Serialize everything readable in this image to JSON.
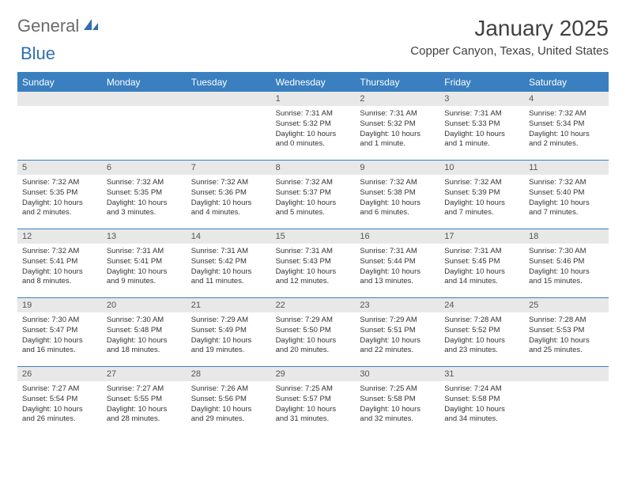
{
  "logo": {
    "text1": "General",
    "text2": "Blue"
  },
  "title": "January 2025",
  "location": "Copper Canyon, Texas, United States",
  "colors": {
    "header_bg": "#3a7fbf",
    "header_text": "#ffffff",
    "daynum_bg": "#e8e8e8",
    "border": "#3a7fbf",
    "body_text": "#333333",
    "page_bg": "#ffffff"
  },
  "day_headers": [
    "Sunday",
    "Monday",
    "Tuesday",
    "Wednesday",
    "Thursday",
    "Friday",
    "Saturday"
  ],
  "weeks": [
    [
      null,
      null,
      null,
      {
        "n": "1",
        "sunrise": "7:31 AM",
        "sunset": "5:32 PM",
        "daylight": "10 hours and 0 minutes."
      },
      {
        "n": "2",
        "sunrise": "7:31 AM",
        "sunset": "5:32 PM",
        "daylight": "10 hours and 1 minute."
      },
      {
        "n": "3",
        "sunrise": "7:31 AM",
        "sunset": "5:33 PM",
        "daylight": "10 hours and 1 minute."
      },
      {
        "n": "4",
        "sunrise": "7:32 AM",
        "sunset": "5:34 PM",
        "daylight": "10 hours and 2 minutes."
      }
    ],
    [
      {
        "n": "5",
        "sunrise": "7:32 AM",
        "sunset": "5:35 PM",
        "daylight": "10 hours and 2 minutes."
      },
      {
        "n": "6",
        "sunrise": "7:32 AM",
        "sunset": "5:35 PM",
        "daylight": "10 hours and 3 minutes."
      },
      {
        "n": "7",
        "sunrise": "7:32 AM",
        "sunset": "5:36 PM",
        "daylight": "10 hours and 4 minutes."
      },
      {
        "n": "8",
        "sunrise": "7:32 AM",
        "sunset": "5:37 PM",
        "daylight": "10 hours and 5 minutes."
      },
      {
        "n": "9",
        "sunrise": "7:32 AM",
        "sunset": "5:38 PM",
        "daylight": "10 hours and 6 minutes."
      },
      {
        "n": "10",
        "sunrise": "7:32 AM",
        "sunset": "5:39 PM",
        "daylight": "10 hours and 7 minutes."
      },
      {
        "n": "11",
        "sunrise": "7:32 AM",
        "sunset": "5:40 PM",
        "daylight": "10 hours and 7 minutes."
      }
    ],
    [
      {
        "n": "12",
        "sunrise": "7:32 AM",
        "sunset": "5:41 PM",
        "daylight": "10 hours and 8 minutes."
      },
      {
        "n": "13",
        "sunrise": "7:31 AM",
        "sunset": "5:41 PM",
        "daylight": "10 hours and 9 minutes."
      },
      {
        "n": "14",
        "sunrise": "7:31 AM",
        "sunset": "5:42 PM",
        "daylight": "10 hours and 11 minutes."
      },
      {
        "n": "15",
        "sunrise": "7:31 AM",
        "sunset": "5:43 PM",
        "daylight": "10 hours and 12 minutes."
      },
      {
        "n": "16",
        "sunrise": "7:31 AM",
        "sunset": "5:44 PM",
        "daylight": "10 hours and 13 minutes."
      },
      {
        "n": "17",
        "sunrise": "7:31 AM",
        "sunset": "5:45 PM",
        "daylight": "10 hours and 14 minutes."
      },
      {
        "n": "18",
        "sunrise": "7:30 AM",
        "sunset": "5:46 PM",
        "daylight": "10 hours and 15 minutes."
      }
    ],
    [
      {
        "n": "19",
        "sunrise": "7:30 AM",
        "sunset": "5:47 PM",
        "daylight": "10 hours and 16 minutes."
      },
      {
        "n": "20",
        "sunrise": "7:30 AM",
        "sunset": "5:48 PM",
        "daylight": "10 hours and 18 minutes."
      },
      {
        "n": "21",
        "sunrise": "7:29 AM",
        "sunset": "5:49 PM",
        "daylight": "10 hours and 19 minutes."
      },
      {
        "n": "22",
        "sunrise": "7:29 AM",
        "sunset": "5:50 PM",
        "daylight": "10 hours and 20 minutes."
      },
      {
        "n": "23",
        "sunrise": "7:29 AM",
        "sunset": "5:51 PM",
        "daylight": "10 hours and 22 minutes."
      },
      {
        "n": "24",
        "sunrise": "7:28 AM",
        "sunset": "5:52 PM",
        "daylight": "10 hours and 23 minutes."
      },
      {
        "n": "25",
        "sunrise": "7:28 AM",
        "sunset": "5:53 PM",
        "daylight": "10 hours and 25 minutes."
      }
    ],
    [
      {
        "n": "26",
        "sunrise": "7:27 AM",
        "sunset": "5:54 PM",
        "daylight": "10 hours and 26 minutes."
      },
      {
        "n": "27",
        "sunrise": "7:27 AM",
        "sunset": "5:55 PM",
        "daylight": "10 hours and 28 minutes."
      },
      {
        "n": "28",
        "sunrise": "7:26 AM",
        "sunset": "5:56 PM",
        "daylight": "10 hours and 29 minutes."
      },
      {
        "n": "29",
        "sunrise": "7:25 AM",
        "sunset": "5:57 PM",
        "daylight": "10 hours and 31 minutes."
      },
      {
        "n": "30",
        "sunrise": "7:25 AM",
        "sunset": "5:58 PM",
        "daylight": "10 hours and 32 minutes."
      },
      {
        "n": "31",
        "sunrise": "7:24 AM",
        "sunset": "5:58 PM",
        "daylight": "10 hours and 34 minutes."
      },
      null
    ]
  ],
  "labels": {
    "sunrise": "Sunrise:",
    "sunset": "Sunset:",
    "daylight": "Daylight:"
  }
}
